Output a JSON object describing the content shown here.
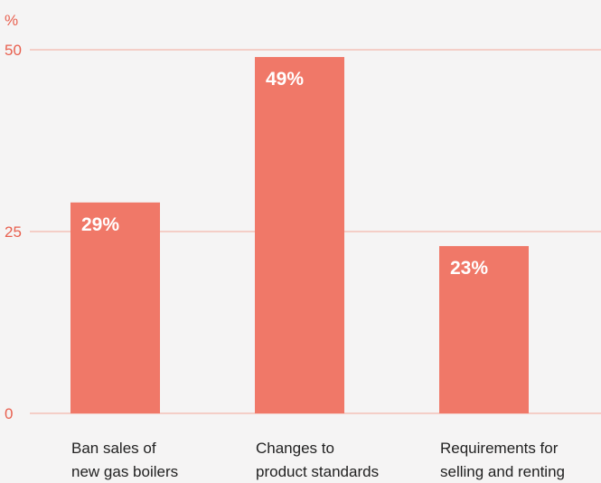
{
  "chart_data": {
    "type": "bar",
    "ylabel": "%",
    "ylim": [
      0,
      50
    ],
    "yticks": [
      "0",
      "25",
      "50"
    ],
    "grid": true,
    "categories": [
      [
        "Ban sales of",
        "new gas boilers"
      ],
      [
        "Changes to",
        "product standards"
      ],
      [
        "Requirements for",
        "selling and renting"
      ]
    ],
    "values": [
      29,
      49,
      23
    ],
    "data_labels": [
      "29%",
      "49%",
      "23%"
    ]
  },
  "colors": {
    "background": "#f5f4f4",
    "bar": "#f07868",
    "gridline": "#f4a99a",
    "axis_text": "#e8604f",
    "category_text": "#222222",
    "data_label": "#ffffff"
  }
}
